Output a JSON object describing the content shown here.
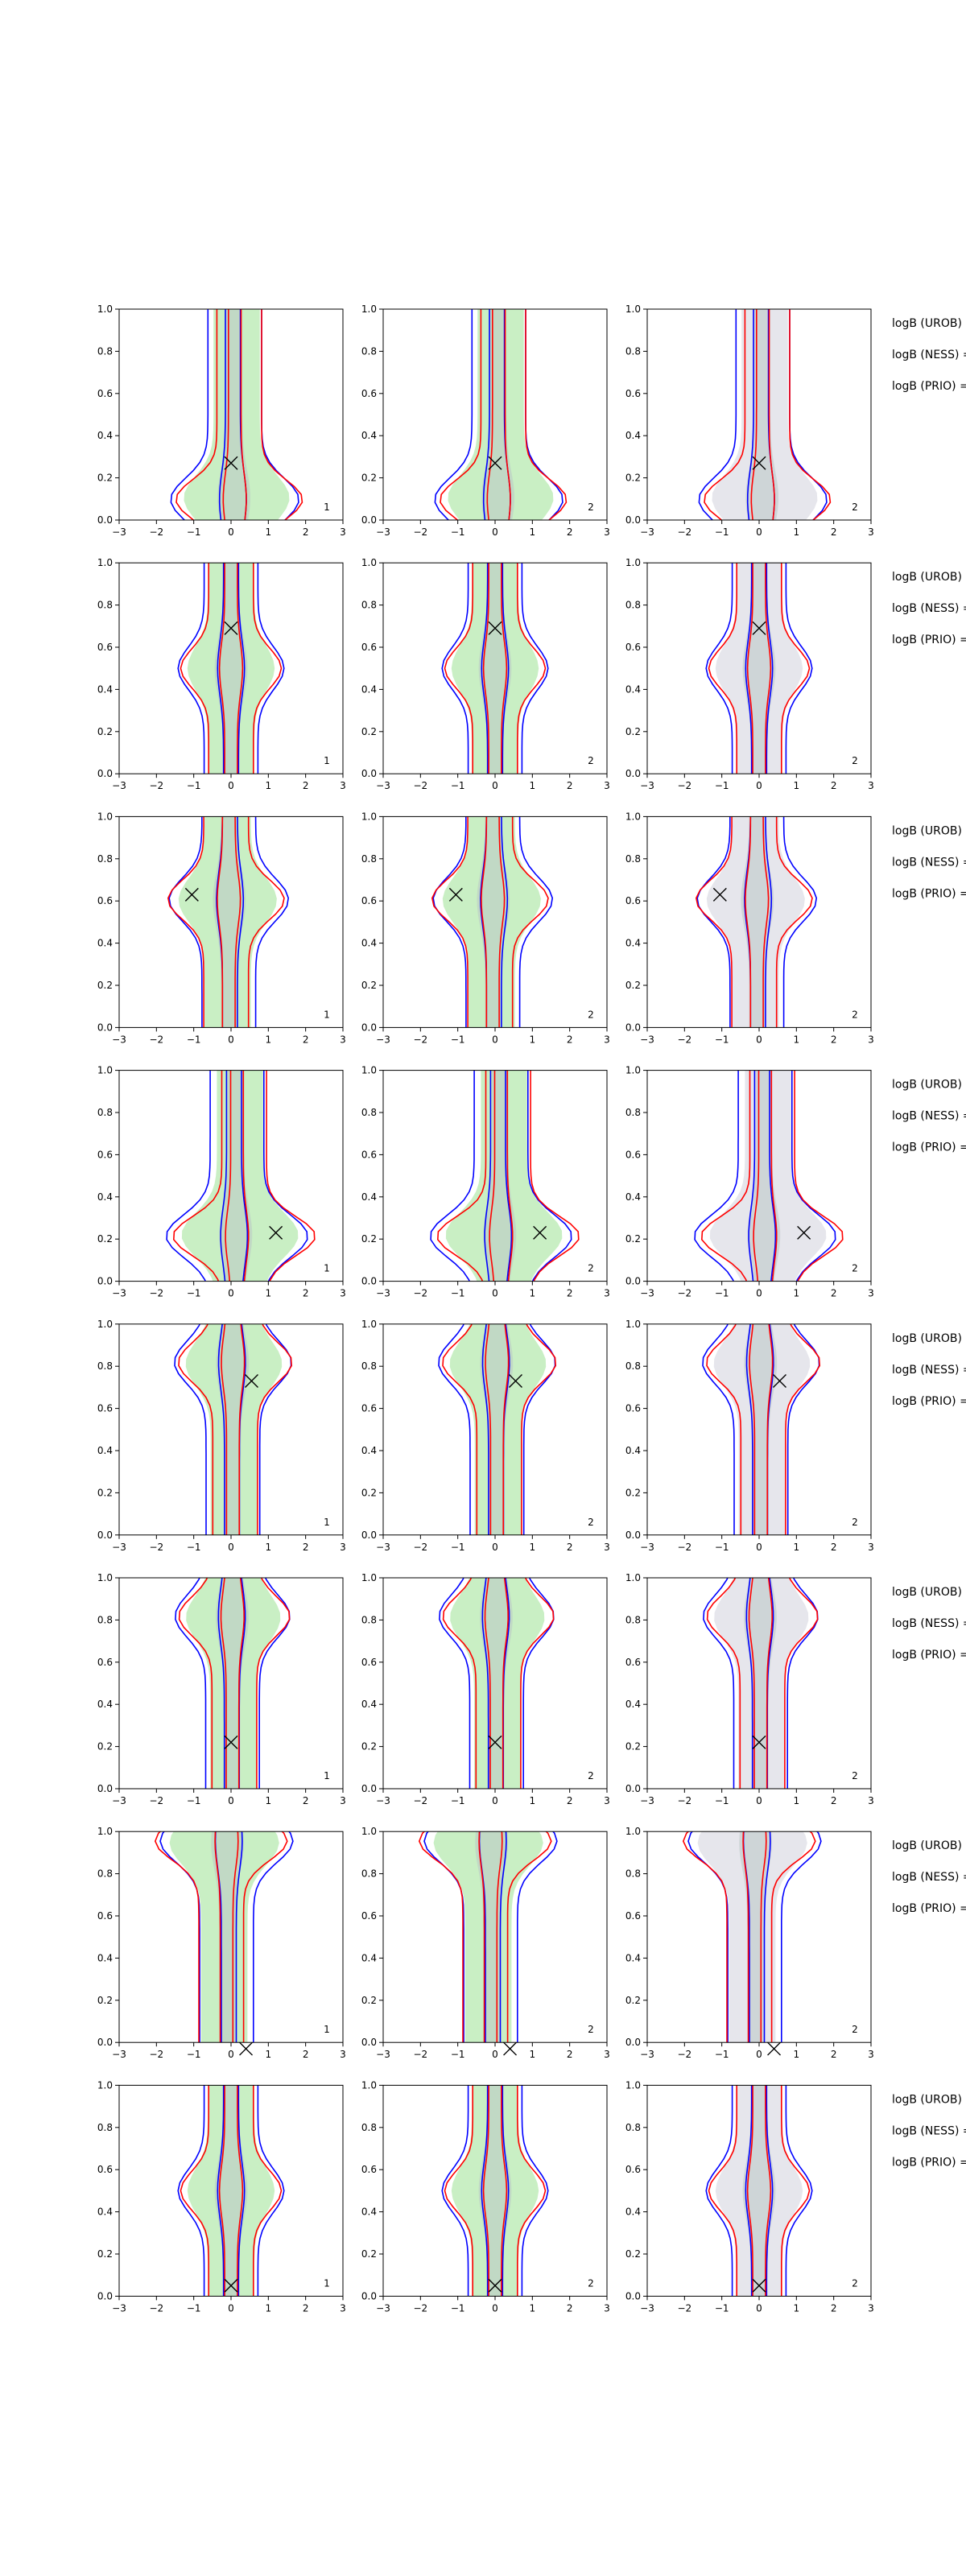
{
  "chart_data": {
    "type": "grid",
    "panel_type": "contour",
    "xlim": [
      -3,
      3
    ],
    "ylim": [
      0.0,
      1.0
    ],
    "x_ticks": [
      "-3",
      "-2",
      "-1",
      "0",
      "1",
      "2",
      "3"
    ],
    "y_ticks": [
      "0.0",
      "0.2",
      "0.4",
      "0.6",
      "0.8",
      "1.0"
    ],
    "columns": [
      {
        "corner_label": "1",
        "fill_color": "#c9efc4"
      },
      {
        "corner_label": "2",
        "fill_color": "#c9efc4"
      },
      {
        "corner_label": "2",
        "fill_color": "#e6e6ec"
      }
    ],
    "contour_colors": {
      "blue": "#0000ff",
      "red": "#ff0000",
      "inner_fill": "#b9c7c6"
    },
    "row_text": [
      "logB (UROB) =",
      "logB (NESS) =",
      "logB (PRIO) ="
    ],
    "rows": [
      {
        "markers": [
          {
            "x": 0.0,
            "y": 0.27
          },
          {
            "x": 0.0,
            "y": 0.27
          },
          {
            "x": 0.0,
            "y": 0.27
          }
        ],
        "tail_x": 1.0,
        "tail_y": 0.12
      },
      {
        "markers": [
          {
            "x": 0.0,
            "y": 0.69
          },
          {
            "x": 0.0,
            "y": 0.69
          },
          {
            "x": 0.0,
            "y": 0.69
          }
        ],
        "tail_x": 0.0,
        "tail_y": 0.5
      },
      {
        "markers": [
          {
            "x": -1.05,
            "y": 0.63
          },
          {
            "x": -1.05,
            "y": 0.63
          },
          {
            "x": -1.05,
            "y": 0.63
          }
        ],
        "tail_x": -0.6,
        "tail_y": 0.6
      },
      {
        "markers": [
          {
            "x": 1.2,
            "y": 0.23
          },
          {
            "x": 1.2,
            "y": 0.23
          },
          {
            "x": 1.2,
            "y": 0.23
          }
        ],
        "tail_x": 1.6,
        "tail_y": 0.23
      },
      {
        "markers": [
          {
            "x": 0.55,
            "y": 0.73
          },
          {
            "x": 0.55,
            "y": 0.73
          },
          {
            "x": 0.55,
            "y": 0.73
          }
        ],
        "tail_x": 0.5,
        "tail_y": 0.8
      },
      {
        "markers": [
          {
            "x": 0.0,
            "y": 0.22
          },
          {
            "x": 0.0,
            "y": 0.22
          },
          {
            "x": 0.0,
            "y": 0.22
          }
        ],
        "tail_x": 0.4,
        "tail_y": 0.8
      },
      {
        "markers": [
          {
            "x": 0.4,
            "y": -0.03
          },
          {
            "x": 0.4,
            "y": -0.03
          },
          {
            "x": 0.4,
            "y": -0.03
          }
        ],
        "tail_x": -1.2,
        "tail_y": 0.93
      },
      {
        "markers": [
          {
            "x": 0.0,
            "y": 0.05
          },
          {
            "x": 0.0,
            "y": 0.05
          },
          {
            "x": 0.0,
            "y": 0.05
          }
        ],
        "tail_x": 0.0,
        "tail_y": 0.5
      }
    ]
  }
}
